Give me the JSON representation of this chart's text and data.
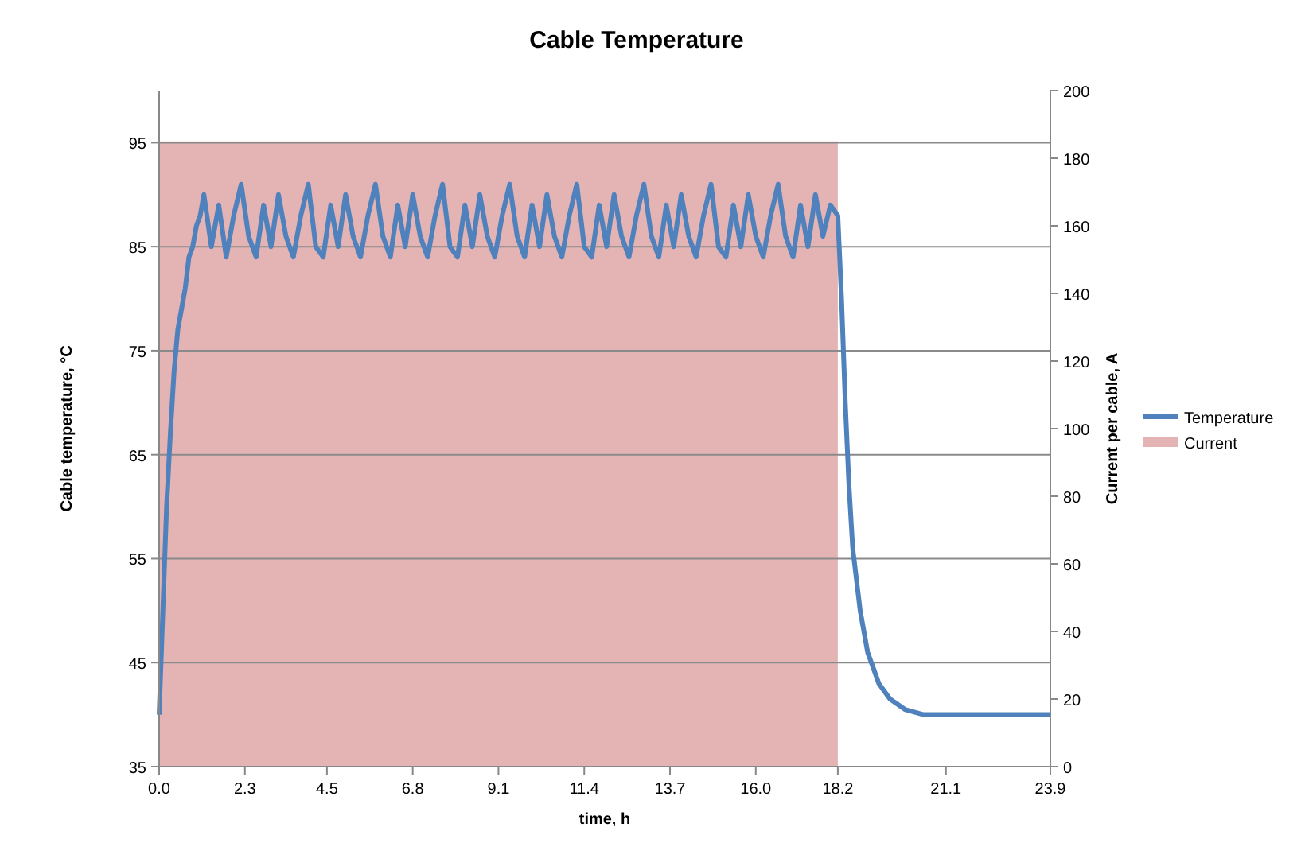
{
  "chart_data": {
    "type": "line",
    "title": "Cable Temperature",
    "xlabel": "time, h",
    "ylabel": "Cable temperature, °C",
    "y2label": "Current per cable, A",
    "xlim": [
      0,
      23.9
    ],
    "xticks": [
      {
        "value": 0,
        "label": "0.0"
      },
      2.3,
      4.5,
      6.8,
      9.1,
      11.4,
      13.7,
      {
        "value": 16,
        "label": "16.0"
      },
      18.2,
      21.1,
      23.9
    ],
    "ylim": [
      35,
      100
    ],
    "yticks": [
      35,
      45,
      55,
      65,
      75,
      85,
      95
    ],
    "y2lim": [
      0,
      200
    ],
    "y2ticks": [
      0,
      20,
      40,
      60,
      80,
      100,
      120,
      140,
      160,
      180,
      200
    ],
    "grid": "y",
    "legend": "right",
    "series": [
      {
        "name": "Temperature",
        "color": "#4f81bd",
        "x": [
          0,
          0.1,
          0.2,
          0.3,
          0.4,
          0.5,
          0.6,
          0.7,
          0.8,
          0.9,
          1.0,
          1.1,
          1.2,
          1.4,
          1.6,
          1.8,
          2.0,
          2.2,
          2.4,
          2.6,
          2.8,
          3.0,
          3.2,
          3.4,
          3.6,
          3.8,
          4.0,
          4.2,
          4.4,
          4.6,
          4.8,
          5.0,
          5.2,
          5.4,
          5.6,
          5.8,
          6.0,
          6.2,
          6.4,
          6.6,
          6.8,
          7.0,
          7.2,
          7.4,
          7.6,
          7.8,
          8.0,
          8.2,
          8.4,
          8.6,
          8.8,
          9.0,
          9.2,
          9.4,
          9.6,
          9.8,
          10.0,
          10.2,
          10.4,
          10.6,
          10.8,
          11.0,
          11.2,
          11.4,
          11.6,
          11.8,
          12.0,
          12.2,
          12.4,
          12.6,
          12.8,
          13.0,
          13.2,
          13.4,
          13.6,
          13.8,
          14.0,
          14.2,
          14.4,
          14.6,
          14.8,
          15.0,
          15.2,
          15.4,
          15.6,
          15.8,
          16.0,
          16.2,
          16.4,
          16.6,
          16.8,
          17.0,
          17.2,
          17.4,
          17.6,
          17.8,
          18.0,
          18.2,
          18.3,
          18.4,
          18.5,
          18.6,
          18.8,
          19.0,
          19.3,
          19.6,
          20.0,
          20.5,
          23.9
        ],
        "values": [
          40,
          50,
          60,
          67,
          73,
          77,
          79,
          81,
          84,
          85,
          87,
          88,
          90,
          85,
          89,
          84,
          88,
          91,
          86,
          84,
          89,
          85,
          90,
          86,
          84,
          88,
          91,
          85,
          84,
          89,
          85,
          90,
          86,
          84,
          88,
          91,
          86,
          84,
          89,
          85,
          90,
          86,
          84,
          88,
          91,
          85,
          84,
          89,
          85,
          90,
          86,
          84,
          88,
          91,
          86,
          84,
          89,
          85,
          90,
          86,
          84,
          88,
          91,
          85,
          84,
          89,
          85,
          90,
          86,
          84,
          88,
          91,
          86,
          84,
          89,
          85,
          90,
          86,
          84,
          88,
          91,
          85,
          84,
          89,
          85,
          90,
          86,
          84,
          88,
          91,
          86,
          84,
          89,
          85,
          90,
          86,
          89,
          88,
          80,
          70,
          62,
          56,
          50,
          46,
          43,
          41.5,
          40.5,
          40,
          40
        ]
      },
      {
        "name": "Current",
        "type": "area",
        "axis": "y2",
        "color": "#e4b4b4",
        "x": [
          0,
          18.2,
          18.2,
          23.9
        ],
        "values": [
          185,
          185,
          0,
          0
        ]
      }
    ]
  }
}
